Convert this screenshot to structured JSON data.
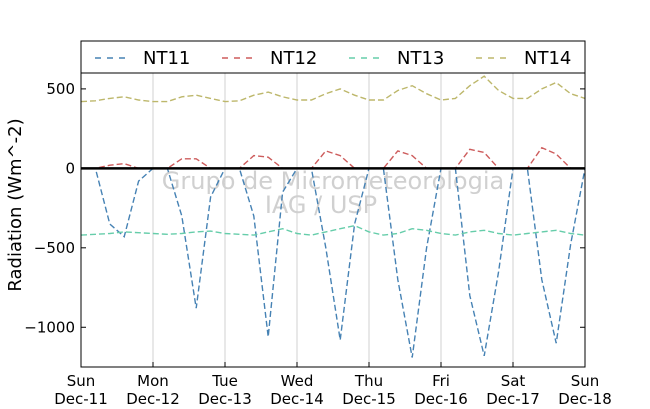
{
  "chart_data": {
    "type": "line",
    "title": "",
    "xlabel": "",
    "ylabel": "Radiation (Wm^-2)",
    "ylim": [
      -1250,
      600
    ],
    "yticks": [
      500,
      0,
      -500,
      -1000
    ],
    "ytick_labels": [
      "500",
      "0",
      "−500",
      "−1000"
    ],
    "xticks": [
      {
        "day": "Sun",
        "date": "Dec-11"
      },
      {
        "day": "Mon",
        "date": "Dec-12"
      },
      {
        "day": "Tue",
        "date": "Dec-13"
      },
      {
        "day": "Wed",
        "date": "Dec-14"
      },
      {
        "day": "Thu",
        "date": "Dec-15"
      },
      {
        "day": "Fri",
        "date": "Dec-16"
      },
      {
        "day": "Sat",
        "date": "Dec-17"
      },
      {
        "day": "Sun",
        "date": "Dec-18"
      }
    ],
    "grid": "vertical",
    "legend": "top, outside plot",
    "watermark": [
      "Grupo de Micrometeorologia",
      "IAG / USP"
    ],
    "series": [
      {
        "name": "NT11",
        "color": "#4682b4",
        "values": [
          0,
          0,
          -350,
          -430,
          -80,
          0,
          0,
          -300,
          -880,
          -180,
          0,
          0,
          -300,
          -1060,
          -150,
          0,
          0,
          -500,
          -1080,
          -350,
          0,
          0,
          -700,
          -1190,
          -500,
          0,
          0,
          -800,
          -1180,
          -650,
          0,
          0,
          -700,
          -1100,
          -480,
          0
        ]
      },
      {
        "name": "NT12",
        "color": "#cd5c5c",
        "values": [
          0,
          0,
          20,
          30,
          0,
          0,
          0,
          60,
          60,
          0,
          0,
          0,
          80,
          70,
          0,
          0,
          0,
          110,
          80,
          0,
          0,
          0,
          110,
          80,
          0,
          0,
          0,
          120,
          100,
          0,
          0,
          0,
          130,
          90,
          0,
          0
        ]
      },
      {
        "name": "NT13",
        "color": "#66cdaa",
        "values": [
          -420,
          -415,
          -410,
          -400,
          -405,
          -410,
          -415,
          -410,
          -400,
          -395,
          -410,
          -415,
          -420,
          -400,
          -380,
          -410,
          -420,
          -400,
          -380,
          -360,
          -400,
          -420,
          -410,
          -380,
          -390,
          -410,
          -420,
          -400,
          -390,
          -410,
          -420,
          -410,
          -400,
          -390,
          -410,
          -420
        ]
      },
      {
        "name": "NT14",
        "color": "#bdb76b",
        "values": [
          420,
          425,
          440,
          450,
          430,
          420,
          420,
          450,
          460,
          440,
          420,
          425,
          460,
          480,
          450,
          430,
          430,
          470,
          500,
          460,
          430,
          430,
          490,
          520,
          470,
          430,
          440,
          520,
          580,
          490,
          440,
          440,
          500,
          540,
          470,
          440
        ]
      }
    ]
  }
}
